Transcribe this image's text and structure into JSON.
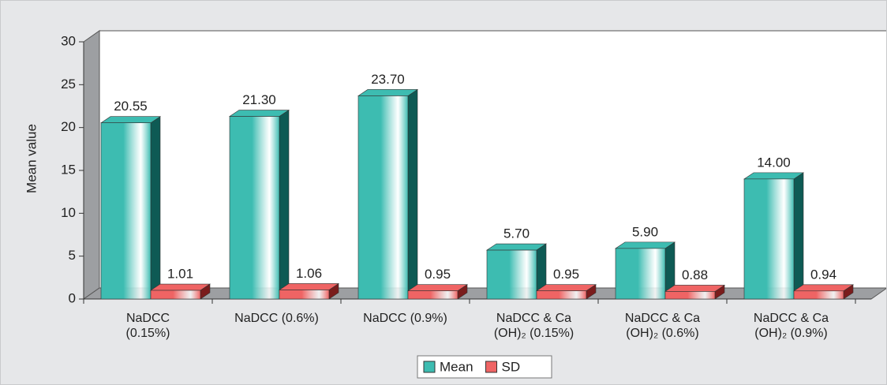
{
  "chart_data": {
    "type": "bar3d",
    "y_label": "Mean value",
    "categories": [
      "NaDCC (0.15%)",
      "NaDCC (0.6%)",
      "NaDCC (0.9%)",
      "NaDCC & Ca (OH)₂ (0.15%)",
      "NaDCC & Ca (OH)₂ (0.6%)",
      "NaDCC & Ca (OH)₂ (0.9%)"
    ],
    "series": [
      {
        "name": "Mean",
        "color": "#3dbcb1",
        "side_color": "#0e5a54",
        "values": [
          20.55,
          21.3,
          23.7,
          5.7,
          5.9,
          14.0
        ],
        "value_labels": [
          "20.55",
          "21.30",
          "23.70",
          "5.70",
          "5.90",
          "14.00"
        ]
      },
      {
        "name": "SD",
        "color": "#ef6464",
        "side_color": "#7a1c1c",
        "values": [
          1.01,
          1.06,
          0.95,
          0.95,
          0.88,
          0.94
        ],
        "value_labels": [
          "1.01",
          "1.06",
          "0.95",
          "0.95",
          "0.88",
          "0.94"
        ]
      }
    ],
    "ylim": [
      0,
      30
    ],
    "yticks": [
      0,
      5,
      10,
      15,
      20,
      25,
      30
    ],
    "legend": "bottom"
  }
}
